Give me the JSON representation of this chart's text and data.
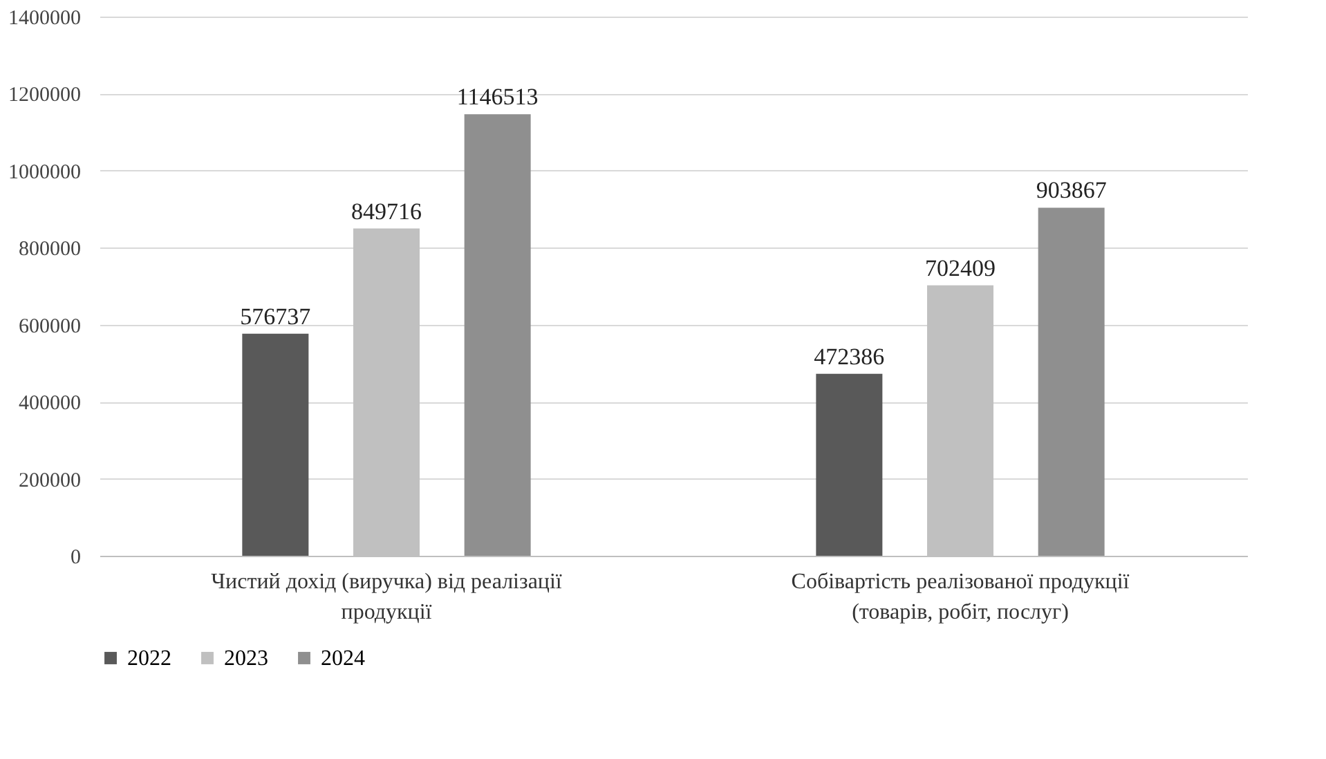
{
  "chart_data": {
    "type": "bar",
    "categories": [
      "Чистий дохід (виручка) від реалізації продукції",
      "Собівартість реалізованої продукції (товарів, робіт, послуг)"
    ],
    "series": [
      {
        "name": "2022",
        "color": "#595959",
        "values": [
          576737,
          472386
        ]
      },
      {
        "name": "2023",
        "color": "#c0c0c0",
        "values": [
          849716,
          702409
        ]
      },
      {
        "name": "2024",
        "color": "#8f8f8f",
        "values": [
          1146513,
          903867
        ]
      }
    ],
    "ylim": [
      0,
      1400000
    ],
    "yticks": [
      0,
      200000,
      400000,
      600000,
      800000,
      1000000,
      1200000,
      1400000
    ],
    "grid": "y",
    "legend": "bottom",
    "data_labels": true
  }
}
